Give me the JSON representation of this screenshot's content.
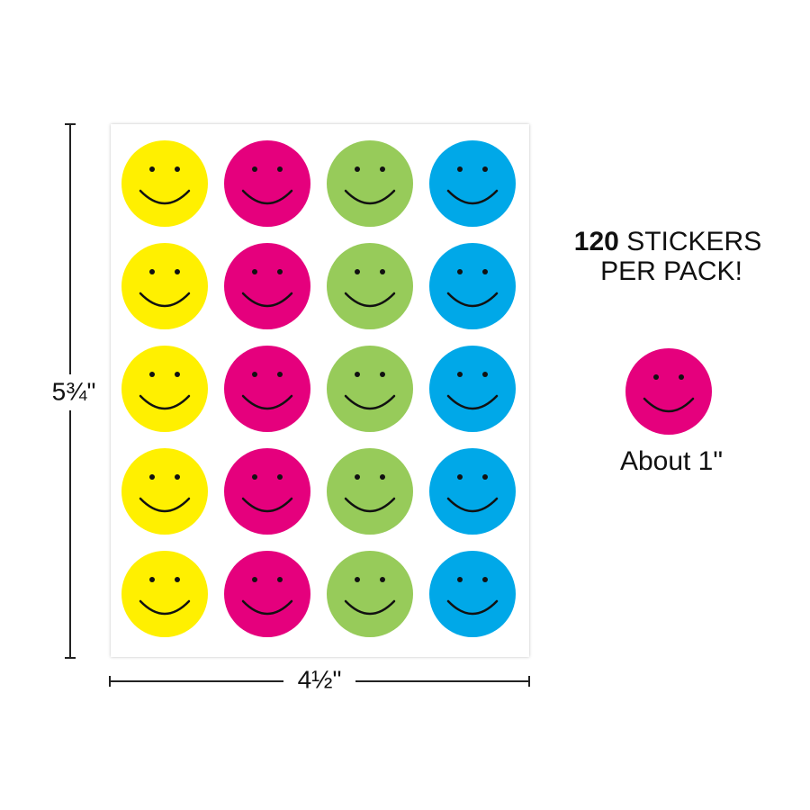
{
  "dimensions": {
    "height": "5¾\"",
    "width": "4½\""
  },
  "headline": {
    "count": "120",
    "line1_rest": "STICKERS",
    "line2": "PER PACK!"
  },
  "sample": {
    "caption": "About 1\""
  }
}
